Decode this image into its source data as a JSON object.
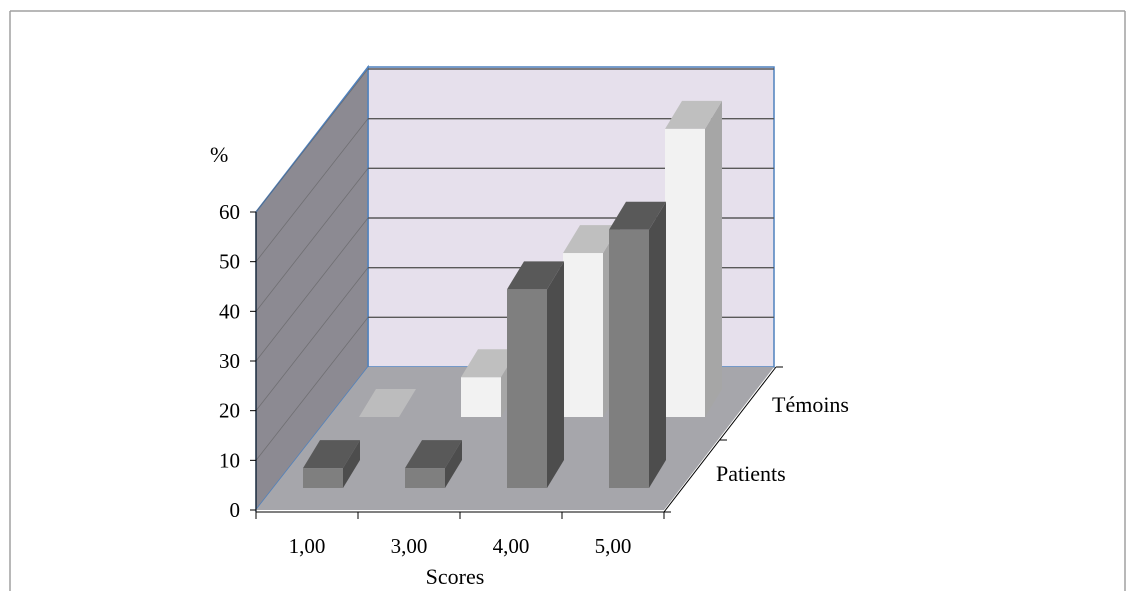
{
  "chart_data": {
    "type": "bar",
    "subtype": "3d-clustered-depth",
    "title": "",
    "xlabel": "Scores",
    "ylabel": "%",
    "categories": [
      "1,00",
      "3,00",
      "4,00",
      "5,00"
    ],
    "y_ticks": [
      "0",
      "10",
      "20",
      "30",
      "40",
      "50",
      "60"
    ],
    "ylim": [
      0,
      60
    ],
    "grid": true,
    "series": [
      {
        "name": "Patients",
        "values": [
          4,
          4,
          40,
          52
        ],
        "color": "#7f7f7f"
      },
      {
        "name": "Témoins",
        "values": [
          0,
          8,
          33,
          58
        ],
        "color": "#f2f2f2"
      }
    ],
    "colors": {
      "back_wall": "#e6e0ec",
      "side_wall": "#8c8a92",
      "floor": "#a6a6ab",
      "gridline": "#595959",
      "wall_edge": "#4f81bd",
      "temoins_top": "#bfbfbf",
      "temoins_side": "#a6a6a6",
      "patients_top": "#595959",
      "patients_side": "#4d4d4d"
    }
  }
}
